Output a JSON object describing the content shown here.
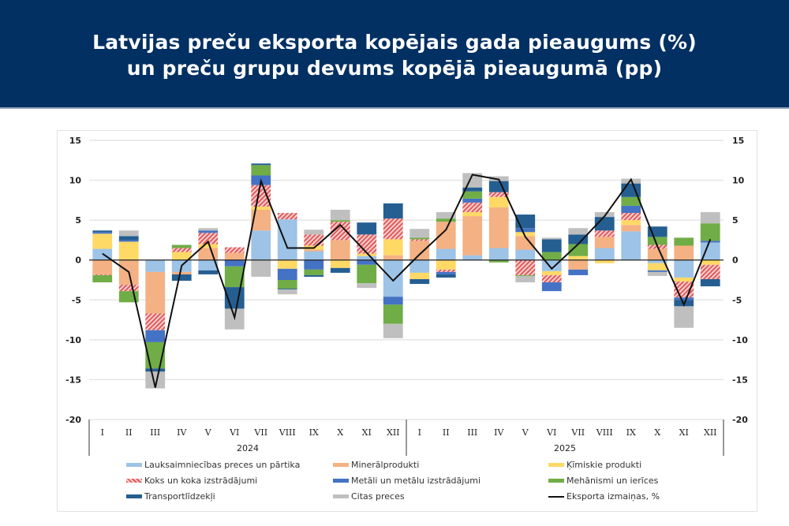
{
  "header": {
    "title_line1": "Latvijas preču eksporta kopējais gada pieaugums (%)",
    "title_line2": "un preču grupu devums kopējā pieaugumā (pp)"
  },
  "chart_data": {
    "type": "bar",
    "stacked": true,
    "title": "Latvijas preču eksporta kopējais gada pieaugums (%) un preču grupu devums kopējā pieaugumā (pp)",
    "xlabel": "",
    "ylabel": "",
    "ylim": [
      -20,
      15
    ],
    "yticks": [
      15,
      10,
      5,
      0,
      -5,
      -10,
      -15,
      -20
    ],
    "y2ticks": [
      15,
      10,
      5,
      0,
      -5,
      -10,
      -15,
      -20
    ],
    "grid": true,
    "legend_position": "bottom",
    "categories": [
      "I",
      "II",
      "III",
      "IV",
      "V",
      "VI",
      "VII",
      "VIII",
      "IX",
      "X",
      "XI",
      "XII",
      "I",
      "II",
      "III",
      "IV",
      "V",
      "VI",
      "VII",
      "VIII",
      "IX",
      "X",
      "XI",
      "XII"
    ],
    "groups": [
      {
        "label": "2024",
        "count": 12
      },
      {
        "label": "2025",
        "count": 12
      }
    ],
    "series": [
      {
        "name": "Lauksaimniecības preces un pārtika",
        "color": "#9dc3e6",
        "pattern": "solid",
        "values": [
          1.4,
          0,
          -1.5,
          -1.5,
          -1.3,
          0,
          3.7,
          5.1,
          1.1,
          0,
          0.5,
          -4.6,
          -1.6,
          1.4,
          0.6,
          1.5,
          1.3,
          -1.4,
          0,
          1.5,
          3.6,
          -0.4,
          -2.2,
          2.2
        ]
      },
      {
        "name": "Minerālprodukti",
        "color": "#f4b183",
        "pattern": "solid",
        "values": [
          -1.8,
          -3.1,
          -5.2,
          -0.3,
          1.5,
          0.9,
          2.6,
          0,
          0.2,
          2.5,
          0,
          0.6,
          2.4,
          3.4,
          4.9,
          5.1,
          1.7,
          0,
          -1.2,
          1.4,
          0.8,
          1.4,
          1.8,
          0
        ]
      },
      {
        "name": "Ķīmiskie produkti",
        "color": "#ffd966",
        "pattern": "solid",
        "values": [
          1.9,
          2.3,
          0,
          1.0,
          0.5,
          0,
          0.4,
          -1.1,
          0.5,
          -1.0,
          0.3,
          2.0,
          -0.8,
          -1.2,
          0.5,
          1.3,
          0.5,
          -0.5,
          0.5,
          -0.4,
          0.6,
          -0.9,
          -0.5,
          -0.6
        ]
      },
      {
        "name": "Koks un koka izstrādājumi",
        "color": "#e05a5a",
        "pattern": "hatch",
        "values": [
          -0.1,
          -0.8,
          -2.1,
          0.5,
          1.4,
          0.7,
          2.7,
          0.8,
          1.4,
          2.3,
          2.4,
          2.6,
          0.2,
          -0.3,
          1.2,
          0.6,
          -1.9,
          -0.9,
          0,
          0.8,
          0.9,
          0.5,
          -2.0,
          -1.8
        ]
      },
      {
        "name": "Metāli un metālu izstrādājumi",
        "color": "#4472c4",
        "pattern": "solid",
        "values": [
          0.2,
          0.2,
          -1.5,
          0,
          0.3,
          -0.8,
          1.2,
          -1.4,
          -1.2,
          0,
          -0.6,
          -1.0,
          0,
          -0.3,
          0.5,
          0,
          0.5,
          -1.1,
          -0.7,
          0,
          0.9,
          -0.2,
          -0.3,
          0.2
        ]
      },
      {
        "name": "Mehānismi un ierīces",
        "color": "#70ad47",
        "pattern": "solid",
        "values": [
          -0.9,
          -1.4,
          -3.3,
          0.4,
          0,
          -2.6,
          1.3,
          -1.1,
          -0.7,
          0.2,
          -2.3,
          -2.4,
          0.2,
          0.4,
          0.9,
          -0.3,
          -0.1,
          1.0,
          1.5,
          0,
          1.1,
          1.0,
          1.0,
          2.2
        ]
      },
      {
        "name": "Transportlīdzekļi",
        "color": "#255e91",
        "pattern": "solid",
        "values": [
          0.2,
          0.5,
          -0.4,
          -0.8,
          -0.5,
          -2.7,
          0.2,
          -0.1,
          -0.2,
          -0.6,
          1.5,
          1.9,
          -0.6,
          -0.4,
          0.5,
          1.4,
          1.7,
          1.6,
          1.2,
          1.7,
          1.7,
          1.3,
          -0.8,
          -0.9
        ]
      },
      {
        "name": "Citas preces",
        "color": "#bfbfbf",
        "pattern": "solid",
        "values": [
          0,
          0.7,
          -2.1,
          0,
          0.3,
          -2.6,
          -2.1,
          -0.6,
          0.6,
          1.3,
          -0.6,
          -1.8,
          1.1,
          0.8,
          1.8,
          0.6,
          -0.8,
          0.2,
          0.8,
          0.6,
          0.6,
          -0.5,
          -2.7,
          1.4
        ]
      }
    ],
    "line": {
      "name": "Eksporta izmaiņas, %",
      "color": "#111111",
      "values": [
        0.8,
        -1.5,
        -16.0,
        -0.7,
        2.3,
        -7.2,
        9.9,
        1.5,
        1.5,
        4.4,
        0.9,
        -2.6,
        0.7,
        3.8,
        10.7,
        10.1,
        2.9,
        -1.1,
        2.0,
        5.5,
        10.1,
        1.7,
        -5.6,
        2.6
      ]
    }
  },
  "legend": {
    "items": [
      {
        "label": "Lauksaimniecības preces un pārtika",
        "color": "#9dc3e6",
        "kind": "solid"
      },
      {
        "label": "Minerālprodukti",
        "color": "#f4b183",
        "kind": "solid"
      },
      {
        "label": "Ķīmiskie produkti",
        "color": "#ffd966",
        "kind": "solid"
      },
      {
        "label": "Koks un koka izstrādājumi",
        "color": "#e05a5a",
        "kind": "hatch"
      },
      {
        "label": "Metāli un metālu izstrādājumi",
        "color": "#4472c4",
        "kind": "solid"
      },
      {
        "label": "Mehānismi un ierīces",
        "color": "#70ad47",
        "kind": "solid"
      },
      {
        "label": "Transportlīdzekļi",
        "color": "#255e91",
        "kind": "solid"
      },
      {
        "label": "Citas preces",
        "color": "#bfbfbf",
        "kind": "solid"
      },
      {
        "label": "Eksporta izmaiņas, %",
        "color": "#111111",
        "kind": "line"
      }
    ]
  }
}
